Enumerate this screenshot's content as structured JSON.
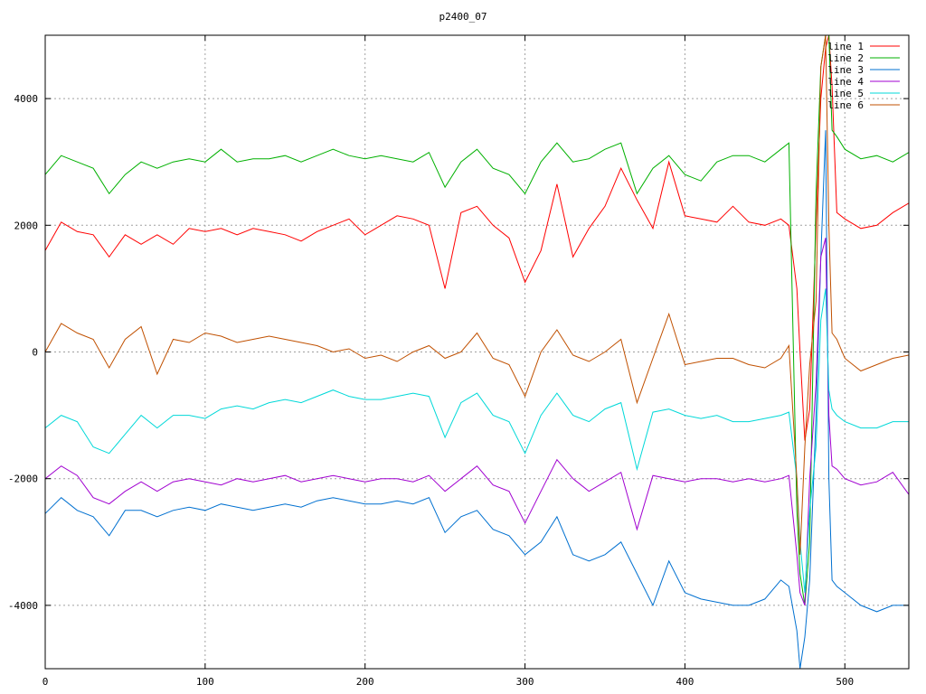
{
  "chart_data": {
    "type": "line",
    "title": "p2400_07",
    "xlabel": "",
    "ylabel": "",
    "xlim": [
      0,
      540
    ],
    "ylim": [
      -5000,
      5000
    ],
    "xticks": [
      0,
      100,
      200,
      300,
      400,
      500
    ],
    "yticks": [
      -4000,
      -2000,
      0,
      2000,
      4000
    ],
    "xtick_labels": [
      "0",
      "100",
      "200",
      "300",
      "400",
      "500"
    ],
    "ytick_labels": [
      "-4000",
      "-2000",
      "0",
      "2000",
      "4000"
    ],
    "grid": true,
    "legend_position": "top-right",
    "x": [
      0,
      10,
      20,
      30,
      40,
      50,
      60,
      70,
      80,
      90,
      100,
      110,
      120,
      130,
      140,
      150,
      160,
      170,
      180,
      190,
      200,
      210,
      220,
      230,
      240,
      250,
      260,
      270,
      280,
      290,
      300,
      310,
      320,
      330,
      340,
      350,
      360,
      370,
      380,
      390,
      400,
      410,
      420,
      430,
      440,
      450,
      460,
      465,
      470,
      472,
      475,
      478,
      482,
      485,
      488,
      490,
      492,
      495,
      500,
      510,
      520,
      530,
      540
    ],
    "series": [
      {
        "name": "line 1",
        "color": "#ff0000",
        "values": [
          1600,
          2050,
          1900,
          1850,
          1500,
          1850,
          1700,
          1850,
          1700,
          1950,
          1900,
          1950,
          1850,
          1950,
          1900,
          1850,
          1750,
          1900,
          2000,
          2100,
          1850,
          2000,
          2150,
          2100,
          2000,
          1000,
          2200,
          2300,
          2000,
          1800,
          1100,
          1600,
          2650,
          1500,
          1950,
          2300,
          2900,
          2400,
          1950,
          3000,
          2150,
          2100,
          2050,
          2300,
          2050,
          2000,
          2100,
          2000,
          1000,
          0,
          -1400,
          -900,
          2000,
          4000,
          4800,
          5000,
          4200,
          2200,
          2100,
          1950,
          2000,
          2200,
          2350
        ]
      },
      {
        "name": "line 2",
        "color": "#00b000",
        "values": [
          2800,
          3100,
          3000,
          2900,
          2500,
          2800,
          3000,
          2900,
          3000,
          3050,
          3000,
          3200,
          3000,
          3050,
          3050,
          3100,
          3000,
          3100,
          3200,
          3100,
          3050,
          3100,
          3050,
          3000,
          3150,
          2600,
          3000,
          3200,
          2900,
          2800,
          2500,
          3000,
          3300,
          3000,
          3050,
          3200,
          3300,
          2500,
          2900,
          3100,
          2800,
          2700,
          3000,
          3100,
          3100,
          3000,
          3200,
          3300,
          -2500,
          -3500,
          -4000,
          -3000,
          2500,
          4500,
          5000,
          5000,
          3500,
          3400,
          3200,
          3050,
          3100,
          3000,
          3150
        ]
      },
      {
        "name": "line 3",
        "color": "#0070d0",
        "values": [
          -2550,
          -2300,
          -2500,
          -2600,
          -2900,
          -2500,
          -2500,
          -2600,
          -2500,
          -2450,
          -2500,
          -2400,
          -2450,
          -2500,
          -2450,
          -2400,
          -2450,
          -2350,
          -2300,
          -2350,
          -2400,
          -2400,
          -2350,
          -2400,
          -2300,
          -2850,
          -2600,
          -2500,
          -2800,
          -2900,
          -3200,
          -3000,
          -2600,
          -3200,
          -3300,
          -3200,
          -3000,
          -3500,
          -4000,
          -3300,
          -3800,
          -3900,
          -3950,
          -4000,
          -4000,
          -3900,
          -3600,
          -3700,
          -4400,
          -5000,
          -4500,
          -3600,
          -1000,
          1500,
          3500,
          -2000,
          -3600,
          -3700,
          -3800,
          -4000,
          -4100,
          -4000,
          -4000
        ]
      },
      {
        "name": "line 4",
        "color": "#a000d0",
        "values": [
          -2000,
          -1800,
          -1950,
          -2300,
          -2400,
          -2200,
          -2050,
          -2200,
          -2050,
          -2000,
          -2050,
          -2100,
          -2000,
          -2050,
          -2000,
          -1950,
          -2050,
          -2000,
          -1950,
          -2000,
          -2050,
          -2000,
          -2000,
          -2050,
          -1950,
          -2200,
          -2000,
          -1800,
          -2100,
          -2200,
          -2700,
          -2200,
          -1700,
          -2000,
          -2200,
          -2050,
          -1900,
          -2800,
          -1950,
          -2000,
          -2050,
          -2000,
          -2000,
          -2050,
          -2000,
          -2050,
          -2000,
          -1950,
          -3200,
          -3800,
          -4000,
          -2000,
          -500,
          1500,
          1800,
          -1000,
          -1800,
          -1850,
          -2000,
          -2100,
          -2050,
          -1900,
          -2250
        ]
      },
      {
        "name": "line 5",
        "color": "#00d8d8",
        "values": [
          -1200,
          -1000,
          -1100,
          -1500,
          -1600,
          -1300,
          -1000,
          -1200,
          -1000,
          -1000,
          -1050,
          -900,
          -850,
          -900,
          -800,
          -750,
          -800,
          -700,
          -600,
          -700,
          -750,
          -750,
          -700,
          -650,
          -700,
          -1350,
          -800,
          -650,
          -1000,
          -1100,
          -1600,
          -1000,
          -650,
          -1000,
          -1100,
          -900,
          -800,
          -1850,
          -950,
          -900,
          -1000,
          -1050,
          -1000,
          -1100,
          -1100,
          -1050,
          -1000,
          -950,
          -2000,
          -3000,
          -3800,
          -2500,
          -1500,
          500,
          1000,
          -600,
          -900,
          -1000,
          -1100,
          -1200,
          -1200,
          -1100,
          -1100
        ]
      },
      {
        "name": "line 6",
        "color": "#c05000",
        "values": [
          0,
          450,
          300,
          200,
          -250,
          200,
          400,
          -350,
          200,
          150,
          300,
          250,
          150,
          200,
          250,
          200,
          150,
          100,
          0,
          50,
          -100,
          -50,
          -150,
          0,
          100,
          -100,
          0,
          300,
          -100,
          -200,
          -700,
          0,
          350,
          -50,
          -150,
          0,
          200,
          -800,
          -100,
          600,
          -200,
          -150,
          -100,
          -100,
          -200,
          -250,
          -100,
          100,
          -2000,
          -3200,
          -1500,
          -200,
          800,
          4500,
          5000,
          2000,
          300,
          200,
          -100,
          -300,
          -200,
          -100,
          -50
        ]
      }
    ]
  }
}
